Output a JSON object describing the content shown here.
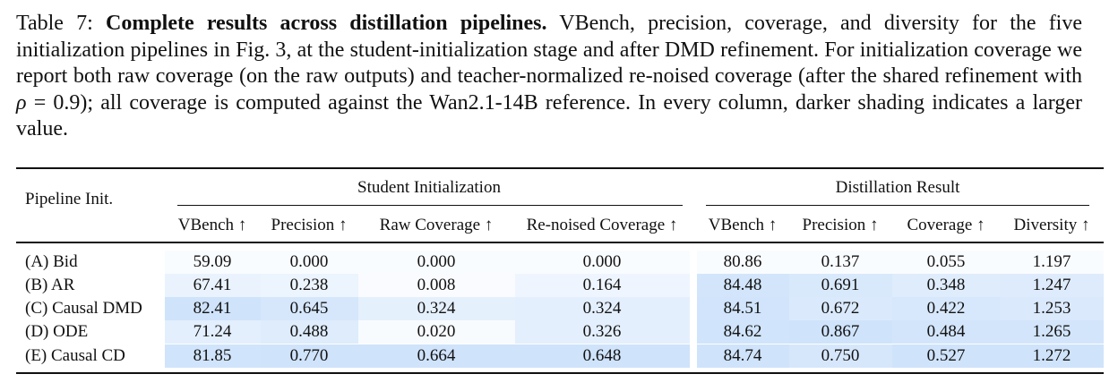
{
  "caption": {
    "label": "Table 7:",
    "title": "Complete results across distillation pipelines.",
    "text_1": "VBench, precision, coverage, and diversity for the five initialization pipelines in Fig. 3, at the student-initialization stage and after DMD refinement. For initialization coverage we report both raw coverage (on the raw outputs) and teacher-normalized re-noised coverage (after the shared refinement with ",
    "math_var": "ρ",
    "math_rest": " = 0.9",
    "text_2": "); all coverage is computed against the Wan2.1-14B reference. In every column, darker shading indicates a larger value."
  },
  "table": {
    "pipeline_header": "Pipeline Init.",
    "groups": [
      "Student Initialization",
      "Distillation Result"
    ],
    "columns": [
      "VBench ↑",
      "Precision ↑",
      "Raw Coverage ↑",
      "Re-noised Coverage ↑",
      "VBench ↑",
      "Precision ↑",
      "Coverage ↑",
      "Diversity ↑"
    ],
    "rows": [
      {
        "label": "(A) Bid",
        "values": [
          "59.09",
          "0.000",
          "0.000",
          "0.000",
          "80.86",
          "0.137",
          "0.055",
          "1.197"
        ]
      },
      {
        "label": "(B) AR",
        "values": [
          "67.41",
          "0.238",
          "0.008",
          "0.164",
          "84.48",
          "0.691",
          "0.348",
          "1.247"
        ]
      },
      {
        "label": "(C) Causal DMD",
        "values": [
          "82.41",
          "0.645",
          "0.324",
          "0.324",
          "84.51",
          "0.672",
          "0.422",
          "1.253"
        ]
      },
      {
        "label": "(D) ODE",
        "values": [
          "71.24",
          "0.488",
          "0.020",
          "0.326",
          "84.62",
          "0.867",
          "0.484",
          "1.265"
        ]
      },
      {
        "label": "(E) Causal CD",
        "values": [
          "81.85",
          "0.770",
          "0.664",
          "0.648",
          "84.74",
          "0.750",
          "0.527",
          "1.272"
        ]
      }
    ],
    "shade_color": "#cfe3fb"
  }
}
